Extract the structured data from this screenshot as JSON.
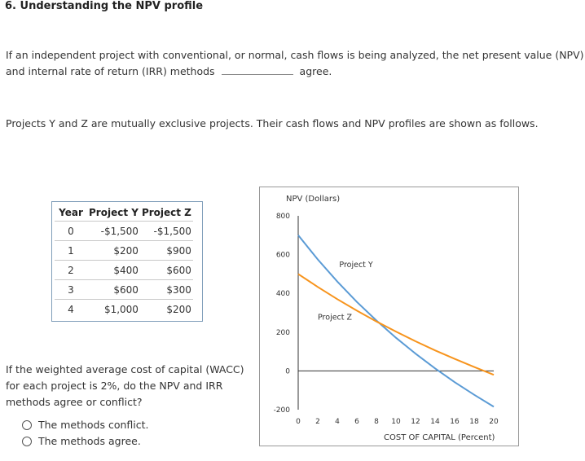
{
  "heading": "6. Understanding the NPV profile",
  "intro": {
    "line1": "If an independent project with conventional, or normal, cash flows is being analyzed, the net present value (NPV)",
    "line2_before": "and internal rate of return (IRR) methods",
    "line2_after": "agree."
  },
  "projects_intro": "Projects Y and Z are mutually exclusive projects. Their cash flows and NPV profiles are shown as follows.",
  "cash_flow_table": {
    "headers": [
      "Year",
      "Project Y",
      "Project Z"
    ],
    "rows": [
      [
        "0",
        "-$1,500",
        "-$1,500"
      ],
      [
        "1",
        "$200",
        "$900"
      ],
      [
        "2",
        "$400",
        "$600"
      ],
      [
        "3",
        "$600",
        "$300"
      ],
      [
        "4",
        "$1,000",
        "$200"
      ]
    ]
  },
  "question": {
    "line1": "If the weighted average cost of capital (WACC)",
    "line2": "for each project is 2%, do the NPV and IRR",
    "line3": "methods agree or conflict?",
    "options": [
      "The methods conflict.",
      "The methods agree."
    ]
  },
  "colors": {
    "project_y": "#5b9bd5",
    "project_z": "#f7941d",
    "axis": "#333333"
  },
  "chart_data": {
    "type": "line",
    "ylabel": "NPV (Dollars)",
    "xlabel": "COST OF CAPITAL (Percent)",
    "xlim": [
      0,
      20
    ],
    "ylim": [
      -200,
      800
    ],
    "x_ticks": [
      "0",
      "2",
      "4",
      "6",
      "8",
      "10",
      "12",
      "14",
      "16",
      "18",
      "20"
    ],
    "y_ticks": [
      "800",
      "600",
      "400",
      "200",
      "0",
      "-200"
    ],
    "series": [
      {
        "name": "Project Y",
        "x": [
          0,
          2,
          4,
          6,
          8,
          10,
          12,
          14,
          16,
          18,
          20
        ],
        "values": [
          700,
          575,
          461,
          356,
          260,
          171,
          89,
          13,
          -58,
          -123,
          -185
        ]
      },
      {
        "name": "Project Z",
        "x": [
          0,
          2,
          4,
          6,
          8,
          10,
          12,
          14,
          16,
          18,
          20
        ],
        "values": [
          500,
          433,
          370,
          311,
          255,
          203,
          153,
          106,
          62,
          20,
          -20
        ]
      }
    ]
  }
}
